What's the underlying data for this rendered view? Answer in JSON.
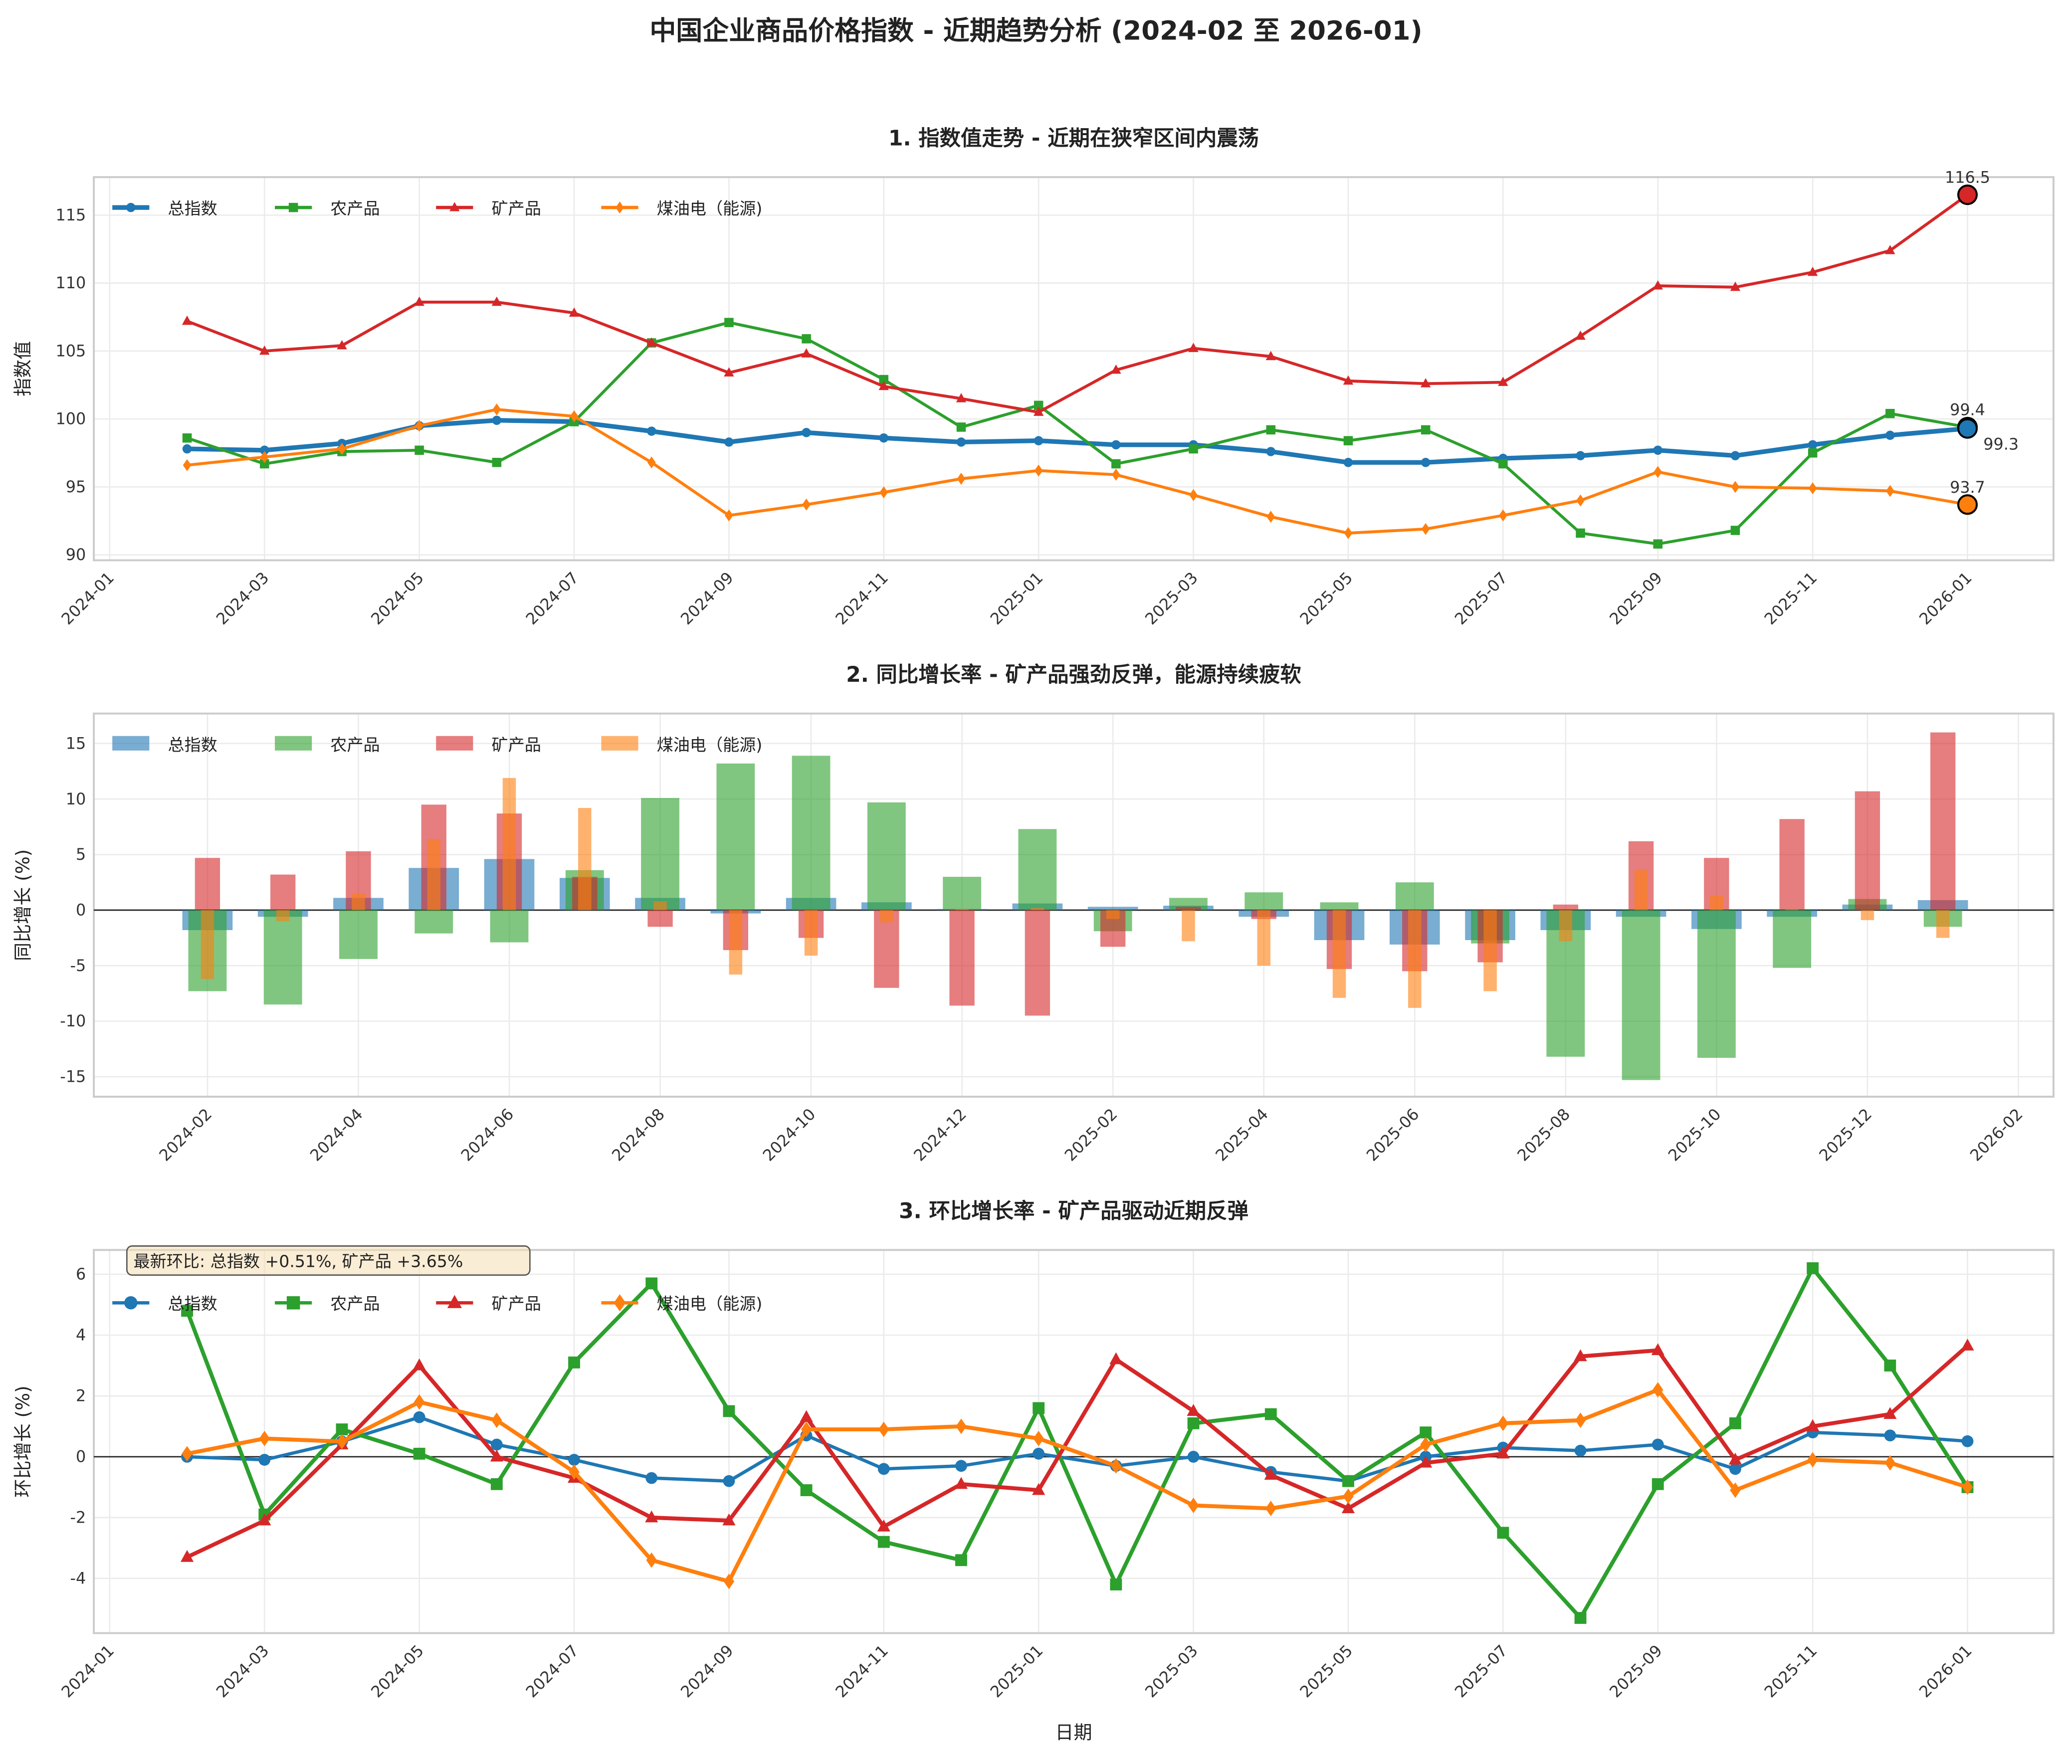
{
  "title": "中国企业商品价格指数 - 近期趋势分析 (2024-02 至 2026-01)",
  "chart_data": [
    {
      "type": "line",
      "title": "1. 指数值走势 - 近期在狭窄区间内震荡",
      "xlabel": "",
      "ylabel": "指数值",
      "ylim": [
        89.6,
        117.8
      ],
      "yticks": [
        90,
        95,
        100,
        105,
        110,
        115
      ],
      "xticks": [
        "2024-01",
        "2024-03",
        "2024-05",
        "2024-07",
        "2024-09",
        "2024-11",
        "2025-01",
        "2025-03",
        "2025-05",
        "2025-07",
        "2025-09",
        "2025-11",
        "2026-01"
      ],
      "x": [
        "2024-02",
        "2024-03",
        "2024-04",
        "2024-05",
        "2024-06",
        "2024-07",
        "2024-08",
        "2024-09",
        "2024-10",
        "2024-11",
        "2024-12",
        "2025-01",
        "2025-02",
        "2025-03",
        "2025-04",
        "2025-05",
        "2025-06",
        "2025-07",
        "2025-08",
        "2025-09",
        "2025-10",
        "2025-11",
        "2025-12",
        "2026-01"
      ],
      "legend": "top-left",
      "grid": true,
      "series": [
        {
          "name": "总指数",
          "color": "#1f77b4",
          "marker": "circle",
          "values": [
            97.8,
            97.7,
            98.2,
            99.5,
            99.9,
            99.8,
            99.1,
            98.3,
            99.0,
            98.6,
            98.3,
            98.4,
            98.1,
            98.1,
            97.6,
            96.8,
            96.8,
            97.1,
            97.3,
            97.7,
            97.3,
            98.1,
            98.8,
            99.3
          ],
          "end_label": "99.3"
        },
        {
          "name": "农产品",
          "color": "#2ca02c",
          "marker": "square",
          "values": [
            98.6,
            96.7,
            97.6,
            97.7,
            96.8,
            99.8,
            105.6,
            107.1,
            105.9,
            102.9,
            99.4,
            101.0,
            96.7,
            97.8,
            99.2,
            98.4,
            99.2,
            96.7,
            91.6,
            90.8,
            91.8,
            97.5,
            100.4,
            99.4
          ],
          "end_label": "99.4"
        },
        {
          "name": "矿产品",
          "color": "#d62728",
          "marker": "triangle",
          "values": [
            107.2,
            105.0,
            105.4,
            108.6,
            108.6,
            107.8,
            105.6,
            103.4,
            104.8,
            102.4,
            101.5,
            100.5,
            103.6,
            105.2,
            104.6,
            102.8,
            102.6,
            102.7,
            106.1,
            109.8,
            109.7,
            110.8,
            112.4,
            116.5
          ],
          "end_label": "116.5"
        },
        {
          "name": "煤油电（能源)",
          "color": "#ff7f0e",
          "marker": "diamond",
          "values": [
            96.6,
            97.2,
            97.8,
            99.5,
            100.7,
            100.2,
            96.8,
            92.9,
            93.7,
            94.6,
            95.6,
            96.2,
            95.9,
            94.4,
            92.8,
            91.6,
            91.9,
            92.9,
            94.0,
            96.1,
            95.0,
            94.9,
            94.7,
            93.7
          ],
          "end_label": "93.7"
        }
      ]
    },
    {
      "type": "bar",
      "title": "2. 同比增长率 - 矿产品强劲反弹，能源持续疲软",
      "xlabel": "",
      "ylabel": "同比增长 (%)",
      "ylim": [
        -16.8,
        17.7
      ],
      "yticks": [
        -15,
        -10,
        -5,
        0,
        5,
        10,
        15
      ],
      "xticks": [
        "2024-02",
        "2024-04",
        "2024-06",
        "2024-08",
        "2024-10",
        "2024-12",
        "2025-02",
        "2025-04",
        "2025-06",
        "2025-08",
        "2025-10",
        "2025-12",
        "2026-02"
      ],
      "x": [
        "2024-02",
        "2024-03",
        "2024-04",
        "2024-05",
        "2024-06",
        "2024-07",
        "2024-08",
        "2024-09",
        "2024-10",
        "2024-11",
        "2024-12",
        "2025-01",
        "2025-02",
        "2025-03",
        "2025-04",
        "2025-05",
        "2025-06",
        "2025-07",
        "2025-08",
        "2025-09",
        "2025-10",
        "2025-11",
        "2025-12",
        "2026-01"
      ],
      "legend": "top-left",
      "grid": true,
      "series": [
        {
          "name": "总指数",
          "color": "#1f77b4",
          "values": [
            -1.8,
            -0.6,
            1.1,
            3.8,
            4.6,
            2.9,
            1.1,
            -0.3,
            1.1,
            0.7,
            0.1,
            0.6,
            0.3,
            0.4,
            -0.6,
            -2.7,
            -3.1,
            -2.7,
            -1.8,
            -0.6,
            -1.7,
            -0.6,
            0.5,
            0.9
          ]
        },
        {
          "name": "农产品",
          "color": "#2ca02c",
          "values": [
            -7.3,
            -8.5,
            -4.4,
            -2.1,
            -2.9,
            3.6,
            10.1,
            13.2,
            13.9,
            9.7,
            3.0,
            7.3,
            -1.9,
            1.1,
            1.6,
            0.7,
            2.5,
            -3.0,
            -13.2,
            -15.3,
            -13.3,
            -5.2,
            1.0,
            -1.5
          ]
        },
        {
          "name": "矿产品",
          "color": "#d62728",
          "values": [
            4.7,
            3.2,
            5.3,
            9.5,
            8.7,
            3.0,
            -1.5,
            -3.6,
            -2.5,
            -7.0,
            -8.6,
            -9.5,
            -3.3,
            0.3,
            -0.8,
            -5.3,
            -5.5,
            -4.7,
            0.5,
            6.2,
            4.7,
            8.2,
            10.7,
            16.0
          ]
        },
        {
          "name": "煤油电（能源)",
          "color": "#ff7f0e",
          "values": [
            -6.2,
            -1.0,
            1.5,
            6.4,
            11.9,
            9.2,
            0.8,
            -5.8,
            -4.1,
            -1.1,
            0.1,
            0.2,
            -0.8,
            -2.8,
            -5.0,
            -7.9,
            -8.8,
            -7.3,
            -2.8,
            3.6,
            1.3,
            0.1,
            -0.9,
            -2.5
          ]
        }
      ]
    },
    {
      "type": "line",
      "title": "3. 环比增长率 - 矿产品驱动近期反弹",
      "xlabel": "日期",
      "ylabel": "环比增长 (%)",
      "ylim": [
        -5.8,
        6.8
      ],
      "yticks": [
        -4,
        -2,
        0,
        2,
        4,
        6
      ],
      "xticks": [
        "2024-01",
        "2024-03",
        "2024-05",
        "2024-07",
        "2024-09",
        "2024-11",
        "2025-01",
        "2025-03",
        "2025-05",
        "2025-07",
        "2025-09",
        "2025-11",
        "2026-01"
      ],
      "x": [
        "2024-02",
        "2024-03",
        "2024-04",
        "2024-05",
        "2024-06",
        "2024-07",
        "2024-08",
        "2024-09",
        "2024-10",
        "2024-11",
        "2024-12",
        "2025-01",
        "2025-02",
        "2025-03",
        "2025-04",
        "2025-05",
        "2025-06",
        "2025-07",
        "2025-08",
        "2025-09",
        "2025-10",
        "2025-11",
        "2025-12",
        "2026-01"
      ],
      "legend": "top-left",
      "grid": true,
      "annotation": "最新环比: 总指数 +0.51%, 矿产品 +3.65%",
      "series": [
        {
          "name": "总指数",
          "color": "#1f77b4",
          "marker": "circle",
          "values": [
            0.0,
            -0.1,
            0.5,
            1.3,
            0.4,
            -0.1,
            -0.7,
            -0.8,
            0.7,
            -0.4,
            -0.3,
            0.1,
            -0.3,
            0.0,
            -0.5,
            -0.8,
            0.0,
            0.3,
            0.2,
            0.4,
            -0.4,
            0.8,
            0.7,
            0.51
          ]
        },
        {
          "name": "农产品",
          "color": "#2ca02c",
          "marker": "square",
          "values": [
            4.8,
            -1.9,
            0.9,
            0.1,
            -0.9,
            3.1,
            5.7,
            1.5,
            -1.1,
            -2.8,
            -3.4,
            1.6,
            -4.2,
            1.1,
            1.4,
            -0.8,
            0.8,
            -2.5,
            -5.3,
            -0.9,
            1.1,
            6.2,
            3.0,
            -1.0
          ]
        },
        {
          "name": "矿产品",
          "color": "#d62728",
          "marker": "triangle",
          "values": [
            -3.3,
            -2.1,
            0.4,
            3.0,
            0.0,
            -0.7,
            -2.0,
            -2.1,
            1.3,
            -2.3,
            -0.9,
            -1.1,
            3.2,
            1.5,
            -0.6,
            -1.7,
            -0.2,
            0.1,
            3.3,
            3.5,
            -0.1,
            1.0,
            1.4,
            3.65
          ]
        },
        {
          "name": "煤油电（能源)",
          "color": "#ff7f0e",
          "marker": "diamond",
          "values": [
            0.1,
            0.6,
            0.5,
            1.8,
            1.2,
            -0.5,
            -3.4,
            -4.1,
            0.9,
            0.9,
            1.0,
            0.6,
            -0.3,
            -1.6,
            -1.7,
            -1.3,
            0.4,
            1.1,
            1.2,
            2.2,
            -1.1,
            -0.1,
            -0.2,
            -1.0
          ]
        }
      ]
    }
  ]
}
